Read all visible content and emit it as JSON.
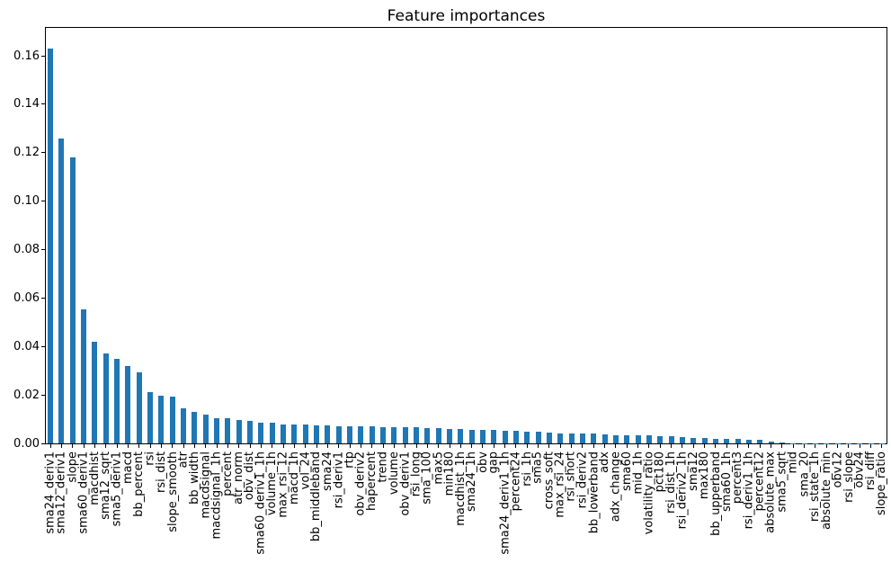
{
  "chart_data": {
    "type": "bar",
    "title": "Feature importances",
    "xlabel": "",
    "ylabel": "",
    "bar_color": "#1f77b4",
    "axis_color": "#000000",
    "background_color": "#ffffff",
    "grid": false,
    "legend": null,
    "x_tick_rotation": 90,
    "ylim": [
      0,
      0.1717
    ],
    "yticks": [
      0.0,
      0.02,
      0.04,
      0.06,
      0.08,
      0.1,
      0.12,
      0.14,
      0.16
    ],
    "ytick_labels": [
      "0.00",
      "0.02",
      "0.04",
      "0.06",
      "0.08",
      "0.10",
      "0.12",
      "0.14",
      "0.16"
    ],
    "categories": [
      "sma24_deriv1",
      "sma12_deriv1",
      "slope",
      "sma60_deriv1",
      "macdhist",
      "sma12_sqrt",
      "sma5_deriv1",
      "macd",
      "bb_percent",
      "rsi",
      "rsi_dist",
      "slope_smooth",
      "atr",
      "bb_width",
      "macdsignal",
      "macdsignal_1h",
      "percent",
      "atr_norm",
      "obv_dist",
      "sma60_deriv1_1h",
      "volume_1h",
      "max_rsi_12",
      "macd_1h",
      "vol_24",
      "bb_middleband",
      "sma24",
      "rsi_deriv1",
      "rtp",
      "obv_deriv2",
      "hapercent",
      "trend",
      "volume",
      "obv_deriv1",
      "rsi_long",
      "sma_100",
      "max5",
      "min180",
      "macdhist_1h",
      "sma24_1h",
      "obv",
      "gap",
      "sma24_deriv1_1h",
      "percent24",
      "rsi_1h",
      "sma5",
      "cross_soft",
      "max_rsi_24",
      "rsi_short",
      "rsi_deriv2",
      "bb_lowerband",
      "adx",
      "adx_change",
      "sma60",
      "mid_1h",
      "volatility_ratio",
      "pct180",
      "rsi_dist_1h",
      "rsi_deriv2_1h",
      "sma12",
      "max180",
      "bb_upperband",
      "sma60_1h",
      "percent3",
      "rsi_deriv1_1h",
      "percent12",
      "absolute_max",
      "sma5_sqrt",
      "mid",
      "sma_20",
      "rsi_state_1h",
      "absolute_min",
      "obv12",
      "rsi_slope",
      "obv24",
      "rsi_diff",
      "slope_ratio"
    ],
    "values": [
      0.163,
      0.126,
      0.118,
      0.0553,
      0.0422,
      0.0371,
      0.035,
      0.0322,
      0.0293,
      0.0212,
      0.02,
      0.0195,
      0.0145,
      0.013,
      0.0121,
      0.0106,
      0.0104,
      0.01,
      0.0094,
      0.0088,
      0.0086,
      0.0081,
      0.0079,
      0.0078,
      0.0077,
      0.0076,
      0.0073,
      0.0072,
      0.0071,
      0.0071,
      0.007,
      0.0069,
      0.0068,
      0.0067,
      0.0066,
      0.0065,
      0.0062,
      0.0061,
      0.0059,
      0.0058,
      0.0056,
      0.0053,
      0.0052,
      0.0051,
      0.0049,
      0.0048,
      0.0044,
      0.0043,
      0.0042,
      0.0041,
      0.0038,
      0.0037,
      0.0036,
      0.0035,
      0.0034,
      0.0032,
      0.003,
      0.0028,
      0.0025,
      0.0023,
      0.0022,
      0.0021,
      0.002,
      0.0017,
      0.0015,
      0.0011,
      0.0004,
      0.0003,
      0.0002,
      0.0002,
      0.0001,
      0.0001,
      0.0001,
      0.0001,
      5e-05,
      3e-05
    ]
  }
}
